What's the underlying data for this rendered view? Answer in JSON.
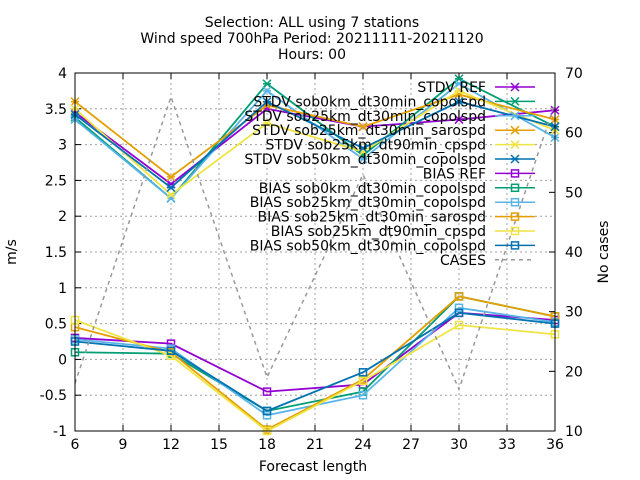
{
  "chart_data": {
    "type": "line",
    "title_lines": [
      "Selection: ALL using      7 stations",
      "Wind speed 700hPa   Period: 20211111-20211120",
      "Hours: 00"
    ],
    "xlabel": "Forecast length",
    "ylabel": "m/s",
    "y2label": "No cases",
    "x_ticks": [
      6,
      9,
      12,
      15,
      18,
      21,
      24,
      27,
      30,
      33,
      36
    ],
    "y_ticks": [
      -1,
      -0.5,
      0,
      0.5,
      1,
      1.5,
      2,
      2.5,
      3,
      3.5,
      4
    ],
    "y2_ticks": [
      10,
      20,
      30,
      40,
      50,
      60,
      70
    ],
    "xlim": [
      6,
      36
    ],
    "ylim": [
      -1,
      4
    ],
    "y2lim": [
      10,
      70
    ],
    "grid": true,
    "legend_position": "top-right",
    "series": [
      {
        "name": "STDV REF",
        "color": "#9400d3",
        "marker": "x",
        "axis": "y",
        "x": [
          6,
          12,
          18,
          24,
          30,
          36
        ],
        "y": [
          3.45,
          2.45,
          3.5,
          3.25,
          3.35,
          3.48
        ]
      },
      {
        "name": "STDV sob0km_dt30min_copolspd",
        "color": "#009e73",
        "marker": "x",
        "axis": "y",
        "x": [
          6,
          12,
          18,
          24,
          30,
          36
        ],
        "y": [
          3.38,
          2.25,
          3.85,
          2.85,
          3.92,
          3.25
        ]
      },
      {
        "name": "STDV sob25km_dt30min_copolspd",
        "color": "#56b4e9",
        "marker": "x",
        "axis": "y",
        "x": [
          6,
          12,
          18,
          24,
          30,
          36
        ],
        "y": [
          3.35,
          2.25,
          3.75,
          2.8,
          3.85,
          3.1
        ]
      },
      {
        "name": "STDV sob25km_dt30min_sarospd",
        "color": "#e69f00",
        "marker": "x",
        "axis": "y",
        "x": [
          6,
          12,
          18,
          24,
          30,
          36
        ],
        "y": [
          3.6,
          2.55,
          3.55,
          3.25,
          3.7,
          3.35
        ]
      },
      {
        "name": "STDV sob25km_dt90min_cpspd",
        "color": "#f0e442",
        "marker": "x",
        "axis": "y",
        "x": [
          6,
          12,
          18,
          24,
          30,
          36
        ],
        "y": [
          3.5,
          2.3,
          3.3,
          2.9,
          3.75,
          3.2
        ]
      },
      {
        "name": "STDV sob50km_dt30min_copolspd",
        "color": "#0072b2",
        "marker": "x",
        "axis": "y",
        "x": [
          6,
          12,
          18,
          24,
          30,
          36
        ],
        "y": [
          3.42,
          2.4,
          3.6,
          2.95,
          3.6,
          3.25
        ]
      },
      {
        "name": "BIAS REF",
        "color": "#9400d3",
        "marker": "square",
        "axis": "y",
        "x": [
          6,
          12,
          18,
          24,
          30,
          36
        ],
        "y": [
          0.3,
          0.22,
          -0.45,
          -0.35,
          0.65,
          0.55
        ]
      },
      {
        "name": "BIAS sob0km_dt30min_copolspd",
        "color": "#009e73",
        "marker": "square",
        "axis": "y",
        "x": [
          6,
          12,
          18,
          24,
          30,
          36
        ],
        "y": [
          0.1,
          0.08,
          -0.72,
          -0.45,
          0.88,
          0.6
        ]
      },
      {
        "name": "BIAS sob25km_dt30min_copolspd",
        "color": "#56b4e9",
        "marker": "square",
        "axis": "y",
        "x": [
          6,
          12,
          18,
          24,
          30,
          36
        ],
        "y": [
          0.28,
          0.15,
          -0.78,
          -0.5,
          0.72,
          0.52
        ]
      },
      {
        "name": "BIAS sob25km_dt30min_sarospd",
        "color": "#e69f00",
        "marker": "square",
        "axis": "y",
        "x": [
          6,
          12,
          18,
          24,
          30,
          36
        ],
        "y": [
          0.45,
          0.1,
          -0.98,
          -0.28,
          0.88,
          0.6
        ]
      },
      {
        "name": "BIAS sob25km_dt90min_cpspd",
        "color": "#f0e442",
        "marker": "square",
        "axis": "y",
        "x": [
          6,
          12,
          18,
          24,
          30,
          36
        ],
        "y": [
          0.55,
          0.05,
          -1.0,
          -0.3,
          0.48,
          0.35
        ]
      },
      {
        "name": "BIAS sob50km_dt30min_copolspd",
        "color": "#0072b2",
        "marker": "square",
        "axis": "y",
        "x": [
          6,
          12,
          18,
          24,
          30,
          36
        ],
        "y": [
          0.25,
          0.12,
          -0.72,
          -0.18,
          0.65,
          0.5
        ]
      },
      {
        "name": "CASES",
        "color": "#999999",
        "marker": "none",
        "dashed": true,
        "axis": "y2",
        "x": [
          6,
          12,
          18,
          24,
          30,
          36
        ],
        "y": [
          18,
          66,
          19,
          53,
          17,
          65
        ]
      }
    ]
  }
}
